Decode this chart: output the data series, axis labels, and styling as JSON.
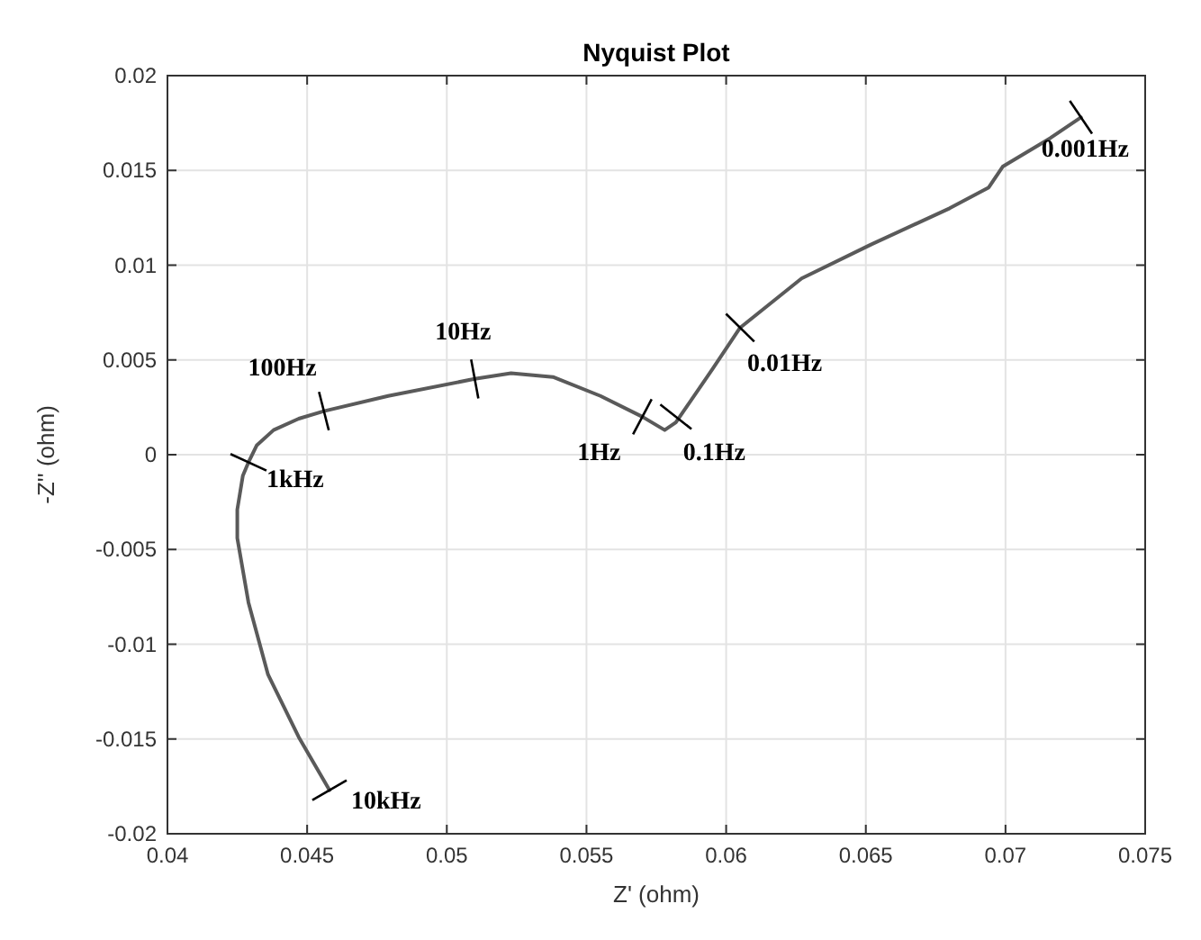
{
  "chart_data": {
    "type": "line",
    "title": "Nyquist Plot",
    "xlabel": "Z' (ohm)",
    "ylabel": "-Z'' (ohm)",
    "xlim": [
      0.04,
      0.075
    ],
    "xticks": [
      0.04,
      0.045,
      0.05,
      0.055,
      0.06,
      0.065,
      0.07,
      0.075
    ],
    "ylim": [
      -0.02,
      0.02
    ],
    "yticks": [
      -0.02,
      -0.015,
      -0.01,
      -0.005,
      0,
      0.005,
      0.01,
      0.015,
      0.02
    ],
    "grid": true,
    "marker": "none",
    "line_style": "solid",
    "series": [
      {
        "color": "#5a5a5a",
        "x": [
          0.0458,
          0.0447,
          0.0436,
          0.0429,
          0.0425,
          0.0425,
          0.0427,
          0.0429,
          0.0432,
          0.0438,
          0.0447,
          0.0456,
          0.0479,
          0.051,
          0.0523,
          0.0538,
          0.0555,
          0.057,
          0.0578,
          0.0582,
          0.0595,
          0.0605,
          0.0627,
          0.0652,
          0.068,
          0.0694,
          0.0699,
          0.0716,
          0.0727
        ],
        "values": [
          -0.0177,
          -0.0149,
          -0.0116,
          -0.0078,
          -0.0044,
          -0.0029,
          -0.0011,
          -0.0004,
          0.0005,
          0.0013,
          0.0019,
          0.0023,
          0.0031,
          0.004,
          0.0043,
          0.0041,
          0.0031,
          0.002,
          0.0013,
          0.0017,
          0.0045,
          0.0067,
          0.0093,
          0.0111,
          0.013,
          0.0141,
          0.0152,
          0.0167,
          0.0178
        ]
      }
    ],
    "annotations": [
      {
        "text": "10kHz",
        "x": 0.0458,
        "y": -0.0177
      },
      {
        "text": "1kHz",
        "x": 0.0429,
        "y": -0.0004
      },
      {
        "text": "100Hz",
        "x": 0.0456,
        "y": 0.0023
      },
      {
        "text": "10Hz",
        "x": 0.051,
        "y": 0.004
      },
      {
        "text": "1Hz",
        "x": 0.057,
        "y": 0.002
      },
      {
        "text": "0.1Hz",
        "x": 0.0582,
        "y": 0.002
      },
      {
        "text": "0.01Hz",
        "x": 0.0605,
        "y": 0.0067
      },
      {
        "text": "0.001Hz",
        "x": 0.0727,
        "y": 0.0178
      }
    ]
  }
}
